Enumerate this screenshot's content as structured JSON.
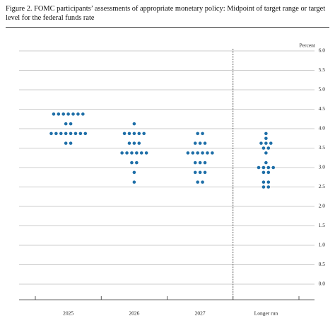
{
  "chart_data": {
    "type": "dot",
    "title": "Figure 2.  FOMC participants’ assessments of appropriate monetary policy: Midpoint of target range or target level for the federal funds rate",
    "y_label": "Percent",
    "categories": [
      "2025",
      "2026",
      "2027",
      "Longer run"
    ],
    "dots": [
      [
        {
          "rate": 4.375,
          "count": 7
        },
        {
          "rate": 4.125,
          "count": 2
        },
        {
          "rate": 3.875,
          "count": 8
        },
        {
          "rate": 3.625,
          "count": 2
        }
      ],
      [
        {
          "rate": 4.125,
          "count": 1
        },
        {
          "rate": 3.875,
          "count": 5
        },
        {
          "rate": 3.625,
          "count": 3
        },
        {
          "rate": 3.375,
          "count": 6
        },
        {
          "rate": 3.125,
          "count": 2
        },
        {
          "rate": 2.875,
          "count": 1
        },
        {
          "rate": 2.625,
          "count": 1
        }
      ],
      [
        {
          "rate": 3.875,
          "count": 2
        },
        {
          "rate": 3.625,
          "count": 3
        },
        {
          "rate": 3.375,
          "count": 6
        },
        {
          "rate": 3.125,
          "count": 3
        },
        {
          "rate": 2.875,
          "count": 3
        },
        {
          "rate": 2.625,
          "count": 2
        }
      ],
      [
        {
          "rate": 3.875,
          "count": 1
        },
        {
          "rate": 3.75,
          "count": 1
        },
        {
          "rate": 3.625,
          "count": 3
        },
        {
          "rate": 3.5,
          "count": 2
        },
        {
          "rate": 3.375,
          "count": 1
        },
        {
          "rate": 3.125,
          "count": 1
        },
        {
          "rate": 3.0,
          "count": 4
        },
        {
          "rate": 2.875,
          "count": 2
        },
        {
          "rate": 2.625,
          "count": 2
        },
        {
          "rate": 2.5,
          "count": 2
        }
      ]
    ],
    "color": "#1f6fa8",
    "ylim": [
      -0.4,
      6.2
    ],
    "yticks": [
      {
        "value": 0,
        "label": "0.0"
      },
      {
        "value": 0.5,
        "label": "0.5"
      },
      {
        "value": 1,
        "label": "1.0"
      },
      {
        "value": 1.5,
        "label": "1.5"
      },
      {
        "value": 2,
        "label": "2.0"
      },
      {
        "value": 2.5,
        "label": "2.5"
      },
      {
        "value": 3,
        "label": "3.0"
      },
      {
        "value": 3.5,
        "label": "3.5"
      },
      {
        "value": 4,
        "label": "4.0"
      },
      {
        "value": 4.5,
        "label": "4.5"
      },
      {
        "value": 5,
        "label": "5.0"
      },
      {
        "value": 5.5,
        "label": "5.5"
      },
      {
        "value": 6,
        "label": "6.0"
      }
    ],
    "grid": true
  }
}
